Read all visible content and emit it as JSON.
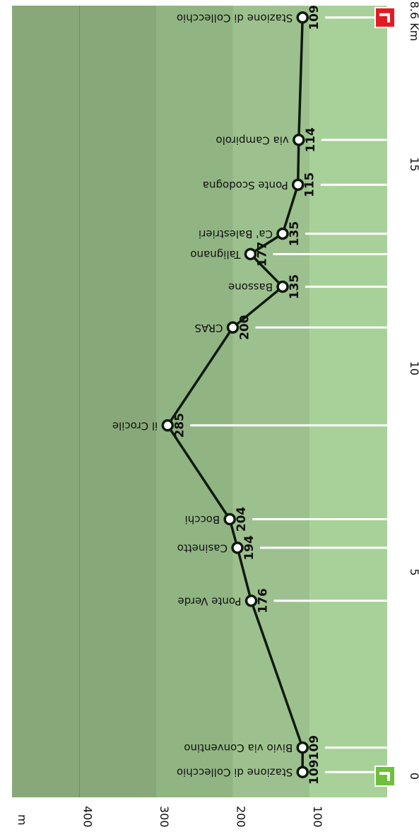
{
  "chart_data": {
    "type": "area",
    "xlabel": "",
    "ylabel": "m",
    "x_unit": "Km",
    "xlim": [
      0,
      18.6
    ],
    "ylim": [
      100,
      480
    ],
    "y_ticks": [
      "100",
      "200",
      "300",
      "400"
    ],
    "x_ticks": [
      "0",
      "5",
      "10",
      "15",
      "18.6 Km"
    ],
    "band_colors": [
      "#a8d199",
      "#9dc18e",
      "#91b483",
      "#88a87a"
    ],
    "line_color": "#0e1a0e",
    "start_marker_color": "#6fbf3d",
    "end_marker_color": "#e01b24",
    "points": [
      {
        "km": 0.1,
        "elev": 109,
        "label": "Stazione di Collecchio",
        "value": "109"
      },
      {
        "km": 0.7,
        "elev": 109,
        "label": "Bivio via Conventino",
        "value": "109"
      },
      {
        "km": 4.3,
        "elev": 176,
        "label": "Ponte  Verde",
        "value": "176"
      },
      {
        "km": 5.6,
        "elev": 194,
        "label": "Casinetto",
        "value": "194"
      },
      {
        "km": 6.3,
        "elev": 204,
        "label": "Bocchi",
        "value": "204"
      },
      {
        "km": 8.6,
        "elev": 285,
        "label": "il Crocile",
        "value": "285"
      },
      {
        "km": 11.0,
        "elev": 200,
        "label": "CRAS",
        "value": "200"
      },
      {
        "km": 12.0,
        "elev": 135,
        "label": "Bassone",
        "value": "135"
      },
      {
        "km": 12.8,
        "elev": 177,
        "label": "Talignano",
        "value": "177"
      },
      {
        "km": 13.3,
        "elev": 135,
        "label": "Ca' Balestrieri",
        "value": "135"
      },
      {
        "km": 14.5,
        "elev": 115,
        "label": "Ponte Scodogna",
        "value": "115"
      },
      {
        "km": 15.6,
        "elev": 114,
        "label": "via Campirolo",
        "value": "114"
      },
      {
        "km": 18.6,
        "elev": 109,
        "label": "Stazione di Collecchio",
        "value": "109"
      }
    ]
  }
}
